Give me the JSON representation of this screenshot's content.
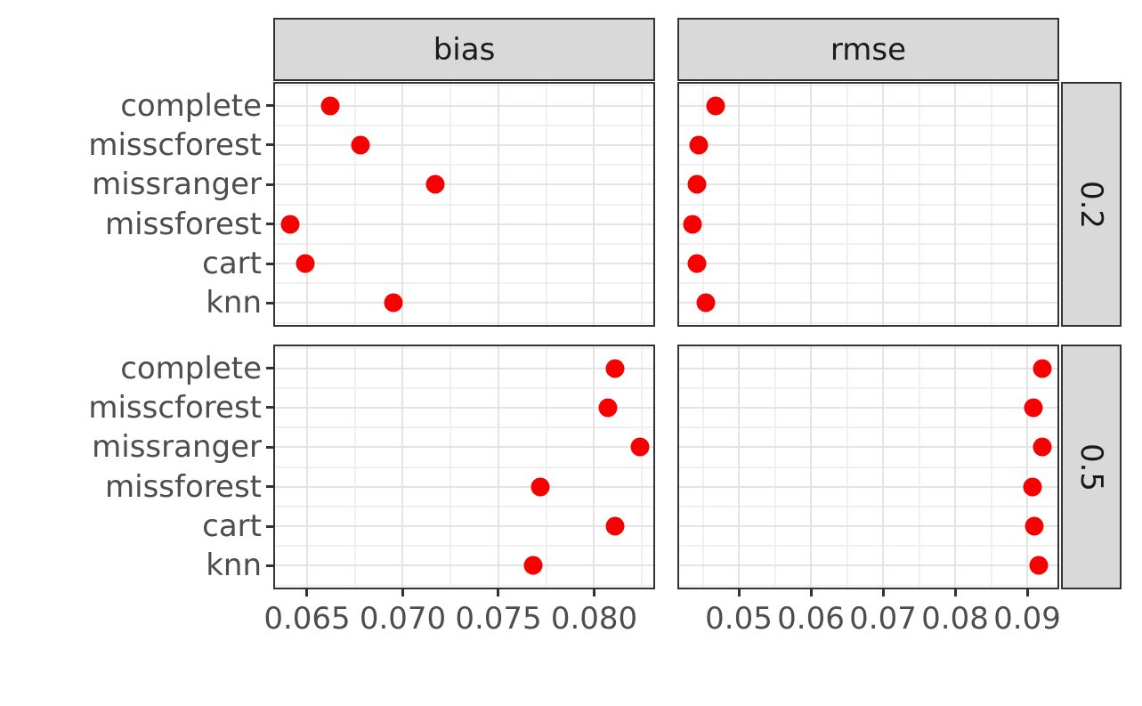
{
  "chart_data": {
    "type": "scatter",
    "title": "",
    "xlabel": "",
    "ylabel": "",
    "grid": true,
    "legend_position": "none",
    "facet_cols": [
      "bias",
      "rmse"
    ],
    "facet_rows": [
      "0.2",
      "0.5"
    ],
    "categories": [
      "complete",
      "misscforest",
      "missranger",
      "missforest",
      "cart",
      "knn"
    ],
    "x_axes": [
      {
        "facet": "bias",
        "ticks": [
          0.065,
          0.07,
          0.075,
          0.08
        ],
        "tick_labels": [
          "0.065",
          "0.070",
          "0.075",
          "0.080"
        ],
        "minor_ticks": [
          0.0675,
          0.0725,
          0.0775,
          0.0825
        ],
        "domain": [
          0.063233,
          0.083186
        ]
      },
      {
        "facet": "rmse",
        "ticks": [
          0.05,
          0.06,
          0.07,
          0.08,
          0.09
        ],
        "tick_labels": [
          "0.05",
          "0.06",
          "0.07",
          "0.08",
          "0.09"
        ],
        "minor_ticks": [
          0.045,
          0.055,
          0.065,
          0.075,
          0.085
        ],
        "domain": [
          0.04148,
          0.09444
        ]
      }
    ],
    "panels": [
      {
        "facet_row": "0.2",
        "facet_col": "bias",
        "values": [
          0.0662,
          0.0678,
          0.0717,
          0.0641,
          0.0649,
          0.0695
        ]
      },
      {
        "facet_row": "0.2",
        "facet_col": "rmse",
        "values": [
          0.0468,
          0.0444,
          0.0442,
          0.0436,
          0.0442,
          0.0454
        ]
      },
      {
        "facet_row": "0.5",
        "facet_col": "bias",
        "values": [
          0.0811,
          0.0807,
          0.0824,
          0.0772,
          0.0811,
          0.0768
        ]
      },
      {
        "facet_row": "0.5",
        "facet_col": "rmse",
        "values": [
          0.0921,
          0.0909,
          0.0921,
          0.0907,
          0.091,
          0.0916
        ]
      }
    ],
    "style": {
      "point_color": "#f80000",
      "strip_fill": "#d9d9d9",
      "strip_text_color": "#1a1a1a",
      "border_color": "#333333",
      "grid_major_color": "#e4e4e4",
      "grid_minor_color": "#f0f0f0",
      "axis_text_color": "#4d4d4d",
      "background": "#ffffff"
    }
  }
}
